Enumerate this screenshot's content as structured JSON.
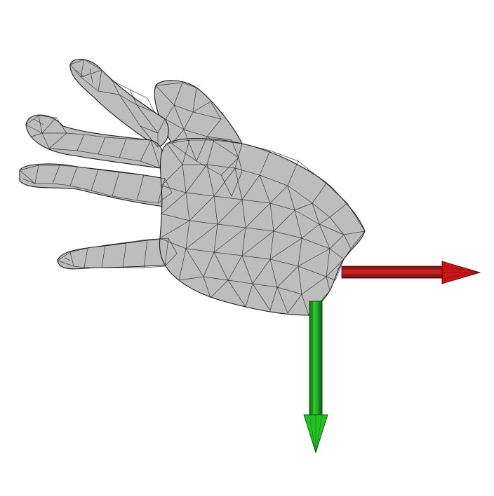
{
  "scene": {
    "background": "#ffffff",
    "mesh_color": "#bdbdbd",
    "edge_color": "#1a1a1a",
    "axes": [
      {
        "axis": "x",
        "color": "#d11a1a",
        "direction": "right"
      },
      {
        "axis": "y",
        "color": "#18c018",
        "direction": "down"
      }
    ]
  }
}
